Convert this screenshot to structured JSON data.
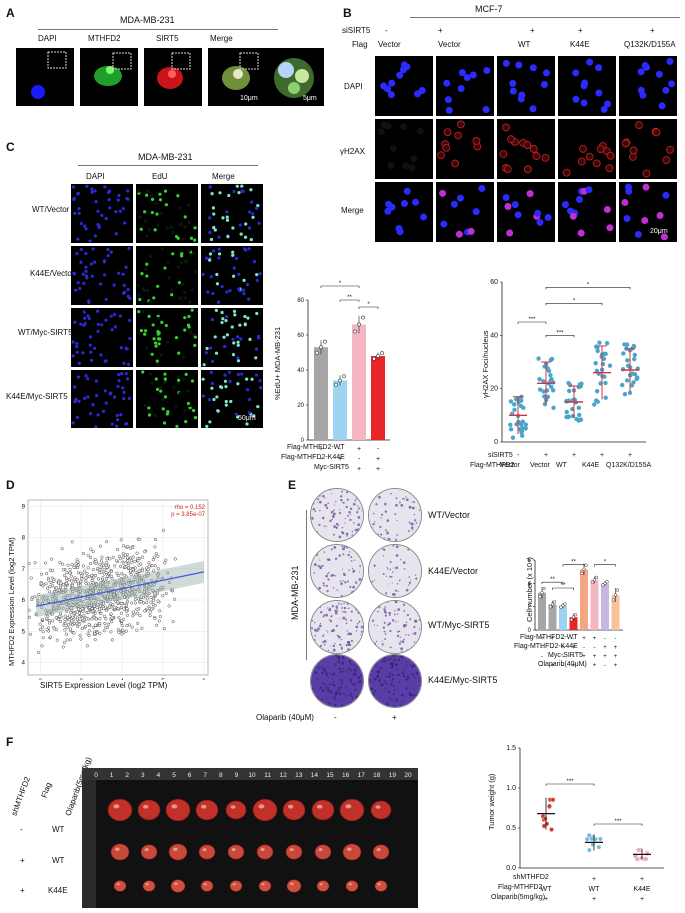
{
  "panelA": {
    "letter": "A",
    "title": "MDA-MB-231",
    "channels": [
      "DAPI",
      "MTHFD2",
      "SIRT5",
      "Merge"
    ],
    "scale1": "10μm",
    "scale2": "5μm"
  },
  "panelB": {
    "letter": "B",
    "title": "MCF-7",
    "row_sirt5_label": "siSIRT5",
    "row_flag_label": "Flag",
    "sirt5_signs": [
      "-",
      "+",
      "+",
      "+",
      "+"
    ],
    "flag_values": [
      "Vector",
      "Vector",
      "WT",
      "K44E",
      "Q132K/D155A"
    ],
    "row_labels": [
      "DAPI",
      "γH2AX",
      "Merge"
    ],
    "scale": "20μm"
  },
  "panelC": {
    "letter": "C",
    "title": "MDA-MB-231",
    "channels": [
      "DAPI",
      "EdU",
      "Merge"
    ],
    "row_labels": [
      "WT/Vector",
      "K44E/Vector",
      "WT/Myc-SIRT5",
      "K44E/Myc-SIRT5"
    ],
    "scale": "50μm"
  },
  "chartC": {
    "ylabel": "%EdU+ MDA-MB-231",
    "yticks": [
      "0",
      "20",
      "40",
      "60",
      "80"
    ],
    "rows": [
      {
        "label": "Flag-MTHFD2-WT",
        "signs": [
          "+",
          "-",
          "+",
          "-"
        ]
      },
      {
        "label": "Flag-MTHFD2-K44E",
        "signs": [
          "-",
          "+",
          "-",
          "+"
        ]
      },
      {
        "label": "Myc-SIRT5",
        "signs": [
          "-",
          "-",
          "+",
          "+"
        ]
      }
    ],
    "sig": [
      "*",
      "**",
      "*",
      "**"
    ]
  },
  "chartB": {
    "ylabel": "γH2AX Foci/nucleus",
    "yticks": [
      "0",
      "20",
      "40",
      "60"
    ],
    "row1_label": "siSIRT5",
    "row1_signs": [
      "-",
      "+",
      "+",
      "+",
      "+"
    ],
    "row2_label": "Flag-MTHFD2",
    "row2_values": [
      "Vector",
      "Vector",
      "WT",
      "K44E",
      "Q132K/D155A"
    ],
    "sig": [
      "***",
      "***",
      "*",
      "*"
    ]
  },
  "panelD": {
    "letter": "D",
    "xlabel": "SIRT5 Expression Level (log2 TPM)",
    "ylabel": "MTHFD2 Expression Level (log2 TPM)",
    "xticks": [
      "2",
      "3",
      "4",
      "5",
      "6"
    ],
    "yticks": [
      "4",
      "5",
      "6",
      "7",
      "8",
      "9"
    ],
    "rho": "rho = 0.152",
    "p": "p = 3.85e-07"
  },
  "panelE": {
    "letter": "E",
    "side_label": "MDA-MB-231",
    "row_labels": [
      "WT/Vector",
      "K44E/Vector",
      "WT/Myc-SIRT5",
      "K44E/Myc-SIRT5"
    ],
    "olaparib_label": "Olaparib (40μM)",
    "olaparib_signs": [
      "-",
      "+"
    ]
  },
  "chartE": {
    "ylabel": "Cell number (x 10⁴)",
    "yticks": [
      "0",
      "2",
      "4",
      "6"
    ],
    "rows": [
      {
        "label": "Flag-MTHFD2-WT",
        "signs": [
          "+",
          "+",
          "-",
          "-",
          "+",
          "+",
          "-",
          "-"
        ]
      },
      {
        "label": "Flag-MTHFD2-K44E",
        "signs": [
          "-",
          "-",
          "+",
          "+",
          "-",
          "-",
          "+",
          "+"
        ]
      },
      {
        "label": "Myc-SIRT5",
        "signs": [
          "-",
          "-",
          "-",
          "-",
          "+",
          "+",
          "+",
          "+"
        ]
      },
      {
        "label": "Olaparib(40μM)",
        "signs": [
          "-",
          "+",
          "-",
          "+",
          "-",
          "+",
          "-",
          "+"
        ]
      }
    ],
    "sig": [
      "**",
      "**",
      "**",
      "*"
    ]
  },
  "panelF": {
    "letter": "F",
    "col_headers": [
      "shMTHFD2",
      "Flag",
      "Olaparib(5mg/kg)"
    ],
    "rows": [
      {
        "sh": "-",
        "flag": "WT"
      },
      {
        "sh": "+",
        "flag": "WT"
      },
      {
        "sh": "+",
        "flag": "K44E"
      }
    ],
    "ruler_numbers": [
      "0",
      "1",
      "2",
      "3",
      "4",
      "5",
      "6",
      "7",
      "8",
      "9",
      "10",
      "11",
      "12",
      "13",
      "14",
      "15",
      "16",
      "17",
      "18",
      "19",
      "20"
    ]
  },
  "chartF": {
    "ylabel": "Tumor weight (g)",
    "yticks": [
      "0.0",
      "0.5",
      "1.0",
      "1.5"
    ],
    "row1_label": "shMTHFD2",
    "row1_signs": [
      "-",
      "+",
      "+"
    ],
    "row2_label": "Flag-MTHFD2",
    "row2_values": [
      "WT",
      "WT",
      "K44E"
    ],
    "row3_label": "Olaparib(5mg/kg)",
    "row3_signs": [
      "+",
      "+",
      "+"
    ],
    "sig": [
      "***",
      "***"
    ]
  },
  "chart_data": [
    {
      "type": "bar",
      "title": "",
      "ylabel": "%EdU+ MDA-MB-231",
      "ylim": [
        0,
        80
      ],
      "categories": [
        "WT/Vector",
        "K44E/Vector",
        "WT/Myc-SIRT5",
        "K44E/Myc-SIRT5"
      ],
      "values": [
        53,
        34,
        66,
        48
      ],
      "errors": [
        4,
        3,
        5,
        2
      ],
      "colors": [
        "#a6a6a6",
        "#9dd3f0",
        "#f4b6c2",
        "#e8262a"
      ]
    },
    {
      "type": "scatter",
      "ylabel": "γH2AX Foci/nucleus",
      "ylim": [
        0,
        60
      ],
      "categories": [
        "-/Vector",
        "+/Vector",
        "+/WT",
        "+/K44E",
        "+/Q132K/D155A"
      ],
      "means": [
        10,
        22,
        15,
        26,
        27
      ],
      "sd": [
        7,
        8,
        6,
        10,
        8
      ]
    },
    {
      "type": "scatter",
      "xlabel": "SIRT5 Expression Level (log2 TPM)",
      "ylabel": "MTHFD2 Expression Level (log2 TPM)",
      "xlim": [
        1.7,
        6.1
      ],
      "ylim": [
        3.6,
        9.2
      ],
      "regression": {
        "x": [
          1.9,
          6.0
        ],
        "y": [
          5.8,
          6.9
        ]
      }
    },
    {
      "type": "bar",
      "ylabel": "Cell number (x 10⁴)",
      "ylim": [
        0,
        6
      ],
      "categories": [
        "WT -",
        "WT +",
        "K44E -",
        "K44E +",
        "WT/SIRT5 -",
        "WT/SIRT5 +",
        "K44E/SIRT5 -",
        "K44E/SIRT5 +"
      ],
      "values": [
        3.2,
        2.2,
        2.1,
        1.1,
        5.2,
        4.3,
        4.0,
        3.0
      ],
      "errors": [
        0.5,
        0.3,
        0.2,
        0.3,
        0.5,
        0.3,
        0.2,
        0.6
      ],
      "colors": [
        "#a6a6a6",
        "#a6a6a6",
        "#9dd3f0",
        "#e8262a",
        "#f4a582",
        "#f4b6c2",
        "#c8b6e2",
        "#f7c49a"
      ]
    },
    {
      "type": "scatter",
      "ylabel": "Tumor weight (g)",
      "ylim": [
        0,
        1.5
      ],
      "categories": [
        "-/WT",
        "+/WT",
        "+/K44E"
      ],
      "means": [
        0.68,
        0.32,
        0.17
      ],
      "sd": [
        0.2,
        0.1,
        0.06
      ]
    }
  ]
}
